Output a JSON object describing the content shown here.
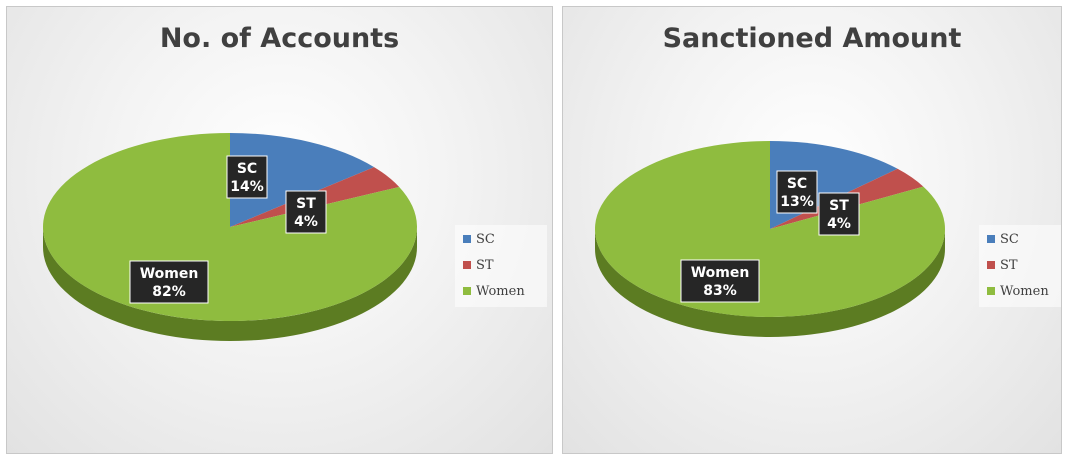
{
  "colors": {
    "SC": "#4a7ebb",
    "ST": "#c0504d",
    "Women": "#8fbc3f"
  },
  "chart_data": [
    {
      "type": "pie",
      "title": "No. of Accounts",
      "categories": [
        "SC",
        "ST",
        "Women"
      ],
      "values": [
        14,
        4,
        82
      ],
      "data_labels": [
        {
          "name": "SC",
          "value": "14%"
        },
        {
          "name": "ST",
          "value": "4%"
        },
        {
          "name": "Women",
          "value": "82%"
        }
      ],
      "legend": {
        "position": "right",
        "entries": [
          "SC",
          "ST",
          "Women"
        ]
      }
    },
    {
      "type": "pie",
      "title": "Sanctioned Amount",
      "categories": [
        "SC",
        "ST",
        "Women"
      ],
      "values": [
        13,
        4,
        83
      ],
      "data_labels": [
        {
          "name": "SC",
          "value": "13%"
        },
        {
          "name": "ST",
          "value": "4%"
        },
        {
          "name": "Women",
          "value": "83%"
        }
      ],
      "legend": {
        "position": "right",
        "entries": [
          "SC",
          "ST",
          "Women"
        ]
      }
    }
  ]
}
